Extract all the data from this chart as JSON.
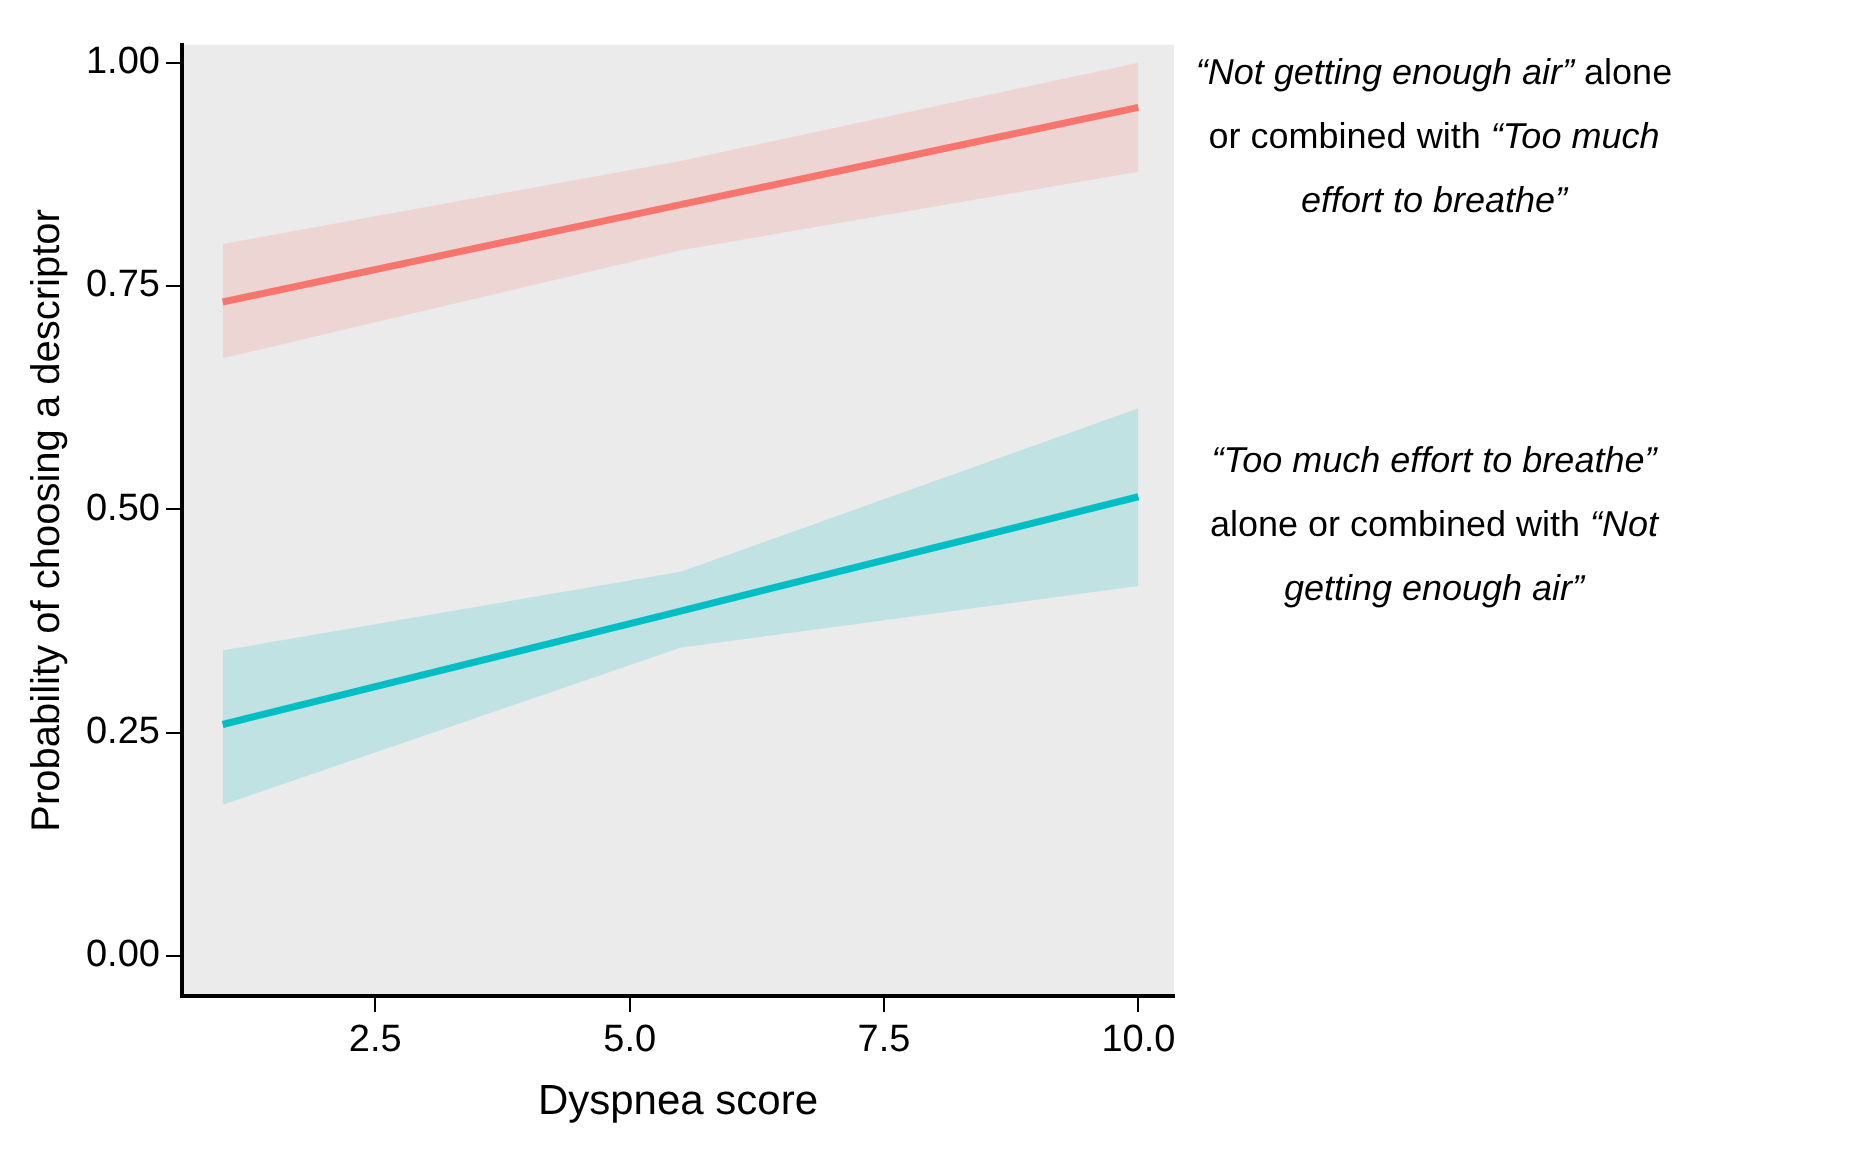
{
  "chart_data": {
    "type": "line",
    "xlabel": "Dyspnea score",
    "ylabel": "Probability of choosing a descriptor",
    "xlim": [
      0.6,
      10.35
    ],
    "xticks": [
      {
        "value": 2.5,
        "label": "2.5"
      },
      {
        "value": 5,
        "label": "5.0"
      },
      {
        "value": 7.5,
        "label": "7.5"
      },
      {
        "value": 10,
        "label": "10.0"
      }
    ],
    "ylim": [
      -0.045,
      1.02
    ],
    "yticks": [
      {
        "value": 0,
        "label": "0.00"
      },
      {
        "value": 0.25,
        "label": "0.25"
      },
      {
        "value": 0.5,
        "label": "0.50"
      },
      {
        "value": 0.75,
        "label": "0.75"
      },
      {
        "value": 1,
        "label": "1.00"
      }
    ],
    "grid": false,
    "marker": "none",
    "line_style": "solid",
    "series": [
      {
        "name": "“Not getting enough air” alone or combined with “Too much effort to breathe”",
        "color": "#f8766d",
        "x": [
          1,
          5.5,
          10
        ],
        "values": [
          0.732,
          0.841,
          0.95
        ],
        "lower": [
          0.669,
          0.79,
          0.878
        ],
        "upper": [
          0.797,
          0.89,
          1.0
        ]
      },
      {
        "name": "“Too much effort to breathe” alone or combined with “Not getting enough air”",
        "color": "#00bfc4",
        "x": [
          1,
          5.5,
          10
        ],
        "values": [
          0.259,
          0.386,
          0.514
        ],
        "lower": [
          0.169,
          0.345,
          0.414
        ],
        "upper": [
          0.342,
          0.43,
          0.613
        ]
      }
    ]
  }
}
